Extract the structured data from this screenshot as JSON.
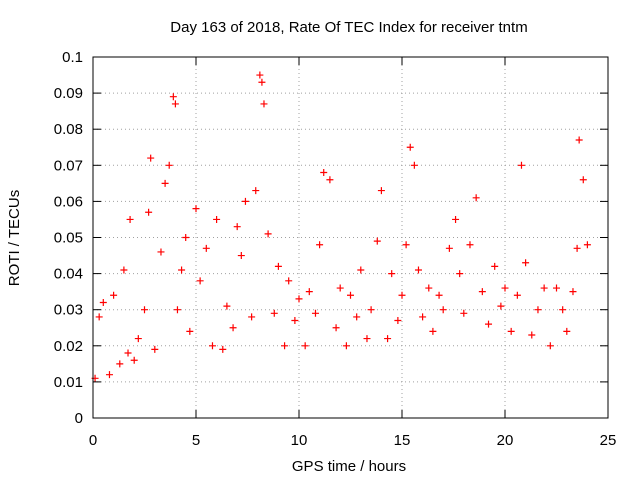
{
  "chart_data": {
    "type": "scatter",
    "title": "Day 163 of 2018, Rate Of TEC Index for receiver tntm",
    "xlabel": "GPS time / hours",
    "ylabel": "ROTI / TECUs",
    "xlim": [
      0,
      25
    ],
    "ylim": [
      0,
      0.1
    ],
    "xticks": [
      "0",
      "5",
      "10",
      "15",
      "20",
      "25"
    ],
    "yticks": [
      "0",
      "0.01",
      "0.02",
      "0.03",
      "0.04",
      "0.05",
      "0.06",
      "0.07",
      "0.08",
      "0.09",
      "0.1"
    ],
    "grid": true,
    "marker": "+",
    "marker_color": "#ff0000",
    "series": [
      {
        "x": [
          0.1,
          0.3,
          0.5,
          0.8,
          1.0,
          1.3,
          1.5,
          1.7,
          1.8,
          2.0,
          2.2,
          2.5,
          2.7,
          2.8,
          3.0,
          3.3,
          3.5,
          3.7,
          3.9,
          4.0,
          4.1,
          4.3,
          4.5,
          4.7,
          5.0,
          5.2,
          5.5,
          5.8,
          6.0,
          6.3,
          6.5,
          6.8,
          7.0,
          7.2,
          7.4,
          7.7,
          7.9,
          8.1,
          8.2,
          8.3,
          8.5,
          8.8,
          9.0,
          9.3,
          9.5,
          9.8,
          10.0,
          10.3,
          10.5,
          10.8,
          11.0,
          11.2,
          11.5,
          11.8,
          12.0,
          12.3,
          12.5,
          12.8,
          13.0,
          13.3,
          13.5,
          13.8,
          14.0,
          14.3,
          14.5,
          14.8,
          15.0,
          15.2,
          15.4,
          15.6,
          15.8,
          16.0,
          16.3,
          16.5,
          16.8,
          17.0,
          17.3,
          17.6,
          17.8,
          18.0,
          18.3,
          18.6,
          18.9,
          19.2,
          19.5,
          19.8,
          20.0,
          20.3,
          20.6,
          20.8,
          21.0,
          21.3,
          21.6,
          21.9,
          22.2,
          22.5,
          22.8,
          23.0,
          23.3,
          23.5,
          23.6,
          23.8,
          24.0
        ],
        "y": [
          0.011,
          0.028,
          0.032,
          0.012,
          0.034,
          0.015,
          0.041,
          0.018,
          0.055,
          0.016,
          0.022,
          0.03,
          0.057,
          0.072,
          0.019,
          0.046,
          0.065,
          0.07,
          0.089,
          0.087,
          0.03,
          0.041,
          0.05,
          0.024,
          0.058,
          0.038,
          0.047,
          0.02,
          0.055,
          0.019,
          0.031,
          0.025,
          0.053,
          0.045,
          0.06,
          0.028,
          0.063,
          0.095,
          0.093,
          0.087,
          0.051,
          0.029,
          0.042,
          0.02,
          0.038,
          0.027,
          0.033,
          0.02,
          0.035,
          0.029,
          0.048,
          0.068,
          0.066,
          0.025,
          0.036,
          0.02,
          0.034,
          0.028,
          0.041,
          0.022,
          0.03,
          0.049,
          0.063,
          0.022,
          0.04,
          0.027,
          0.034,
          0.048,
          0.075,
          0.07,
          0.041,
          0.028,
          0.036,
          0.024,
          0.034,
          0.03,
          0.047,
          0.055,
          0.04,
          0.029,
          0.048,
          0.061,
          0.035,
          0.026,
          0.042,
          0.031,
          0.036,
          0.024,
          0.034,
          0.07,
          0.043,
          0.023,
          0.03,
          0.036,
          0.02,
          0.036,
          0.03,
          0.024,
          0.035,
          0.047,
          0.077,
          0.066,
          0.048
        ]
      }
    ]
  }
}
